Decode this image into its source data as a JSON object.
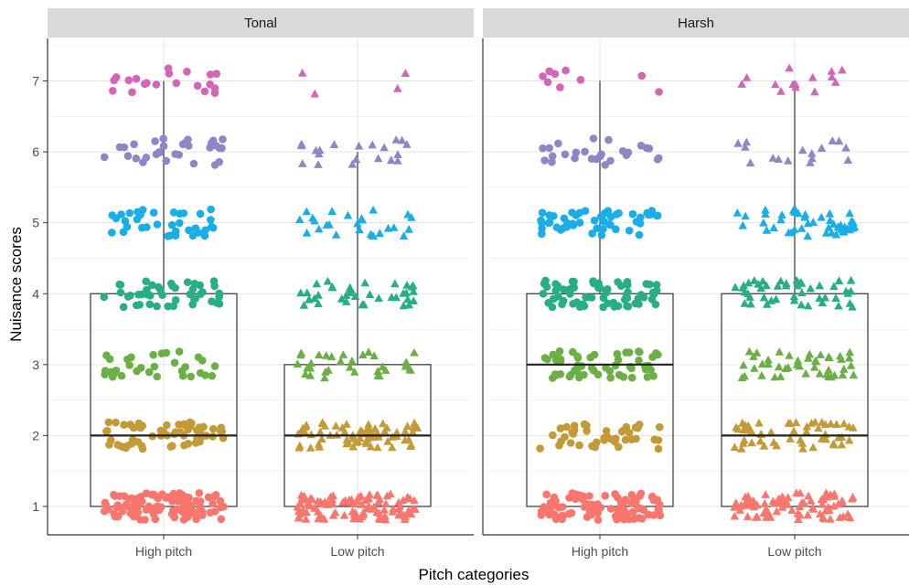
{
  "chart_data": {
    "type": "box-jitter",
    "xlabel": "Pitch categories",
    "ylabel": "Nuisance scores",
    "ylim": [
      0.6,
      7.6
    ],
    "yticks": [
      1,
      2,
      3,
      4,
      5,
      6,
      7
    ],
    "grid": true,
    "categories": [
      "High pitch",
      "Low pitch"
    ],
    "score_colors": {
      "1": "#f8766d",
      "2": "#c49a37",
      "3": "#6bb045",
      "4": "#27ae86",
      "5": "#1aaee8",
      "6": "#8f86c8",
      "7": "#d364b8"
    },
    "marker_shapes": {
      "High pitch": "circle",
      "Low pitch": "triangle"
    },
    "panels": [
      {
        "name": "Tonal",
        "groups": [
          {
            "category": "High pitch",
            "box": {
              "whisker_low": 1,
              "q1": 1,
              "median": 2,
              "q3": 4,
              "whisker_high": 7
            },
            "counts": {
              "1": 110,
              "2": 60,
              "3": 32,
              "4": 46,
              "5": 36,
              "6": 32,
              "7": 20
            }
          },
          {
            "category": "Low pitch",
            "box": {
              "whisker_low": 1,
              "q1": 1,
              "median": 2,
              "q3": 3,
              "whisker_high": 6
            },
            "counts": {
              "1": 100,
              "2": 70,
              "3": 34,
              "4": 36,
              "5": 26,
              "6": 20,
              "7": 4
            }
          }
        ]
      },
      {
        "name": "Harsh",
        "groups": [
          {
            "category": "High pitch",
            "box": {
              "whisker_low": 1,
              "q1": 1,
              "median": 3,
              "q3": 4,
              "whisker_high": 7
            },
            "counts": {
              "1": 90,
              "2": 44,
              "3": 56,
              "4": 70,
              "5": 52,
              "6": 26,
              "7": 10
            }
          },
          {
            "category": "Low pitch",
            "box": {
              "whisker_low": 1,
              "q1": 1,
              "median": 2,
              "q3": 4,
              "whisker_high": 7
            },
            "counts": {
              "1": 84,
              "2": 52,
              "3": 44,
              "4": 46,
              "5": 46,
              "6": 16,
              "7": 14
            }
          }
        ]
      }
    ]
  }
}
